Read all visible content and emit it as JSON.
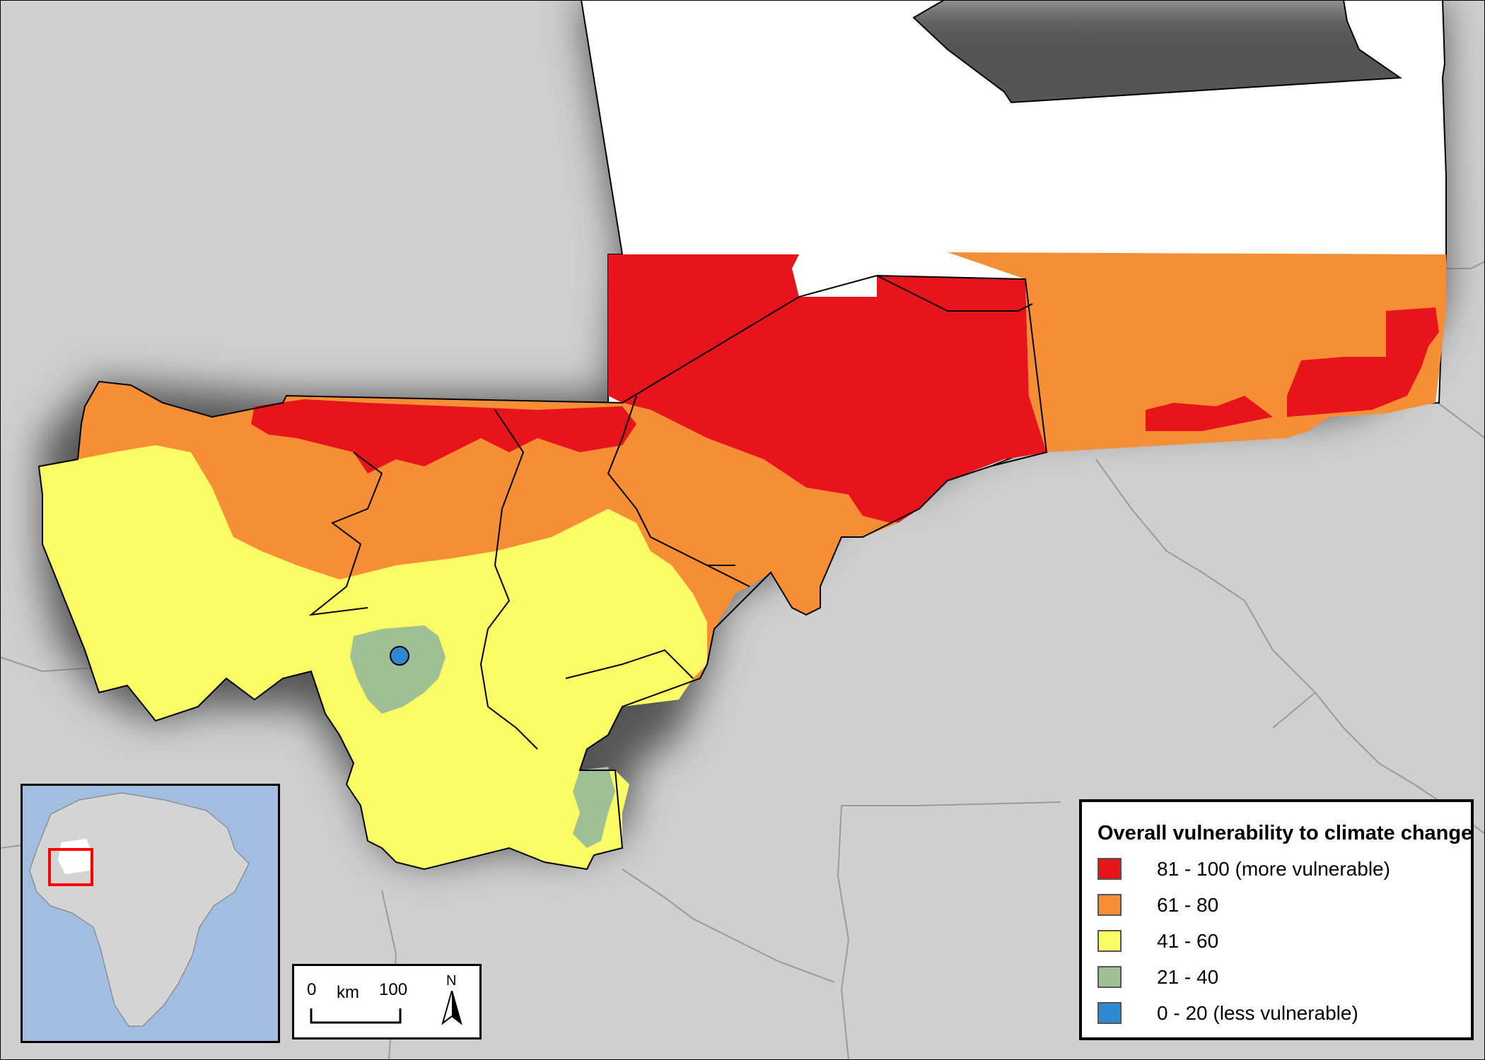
{
  "legend": {
    "title": "Overall vulnerability to climate change",
    "items": [
      {
        "label": "81 - 100 (more vulnerable)",
        "color": "#e8141b"
      },
      {
        "label": "61 - 80",
        "color": "#f68e35"
      },
      {
        "label": "41 - 60",
        "color": "#fbfb65"
      },
      {
        "label": "21 - 40",
        "color": "#9fbf94"
      },
      {
        "label": "0 - 20 (less vulnerable)",
        "color": "#2d8ad1"
      }
    ]
  },
  "scalebar": {
    "start": "0",
    "unit": "km",
    "end": "100",
    "north": "N"
  },
  "colors": {
    "background": "#cfcfcf",
    "no_data": "#ffffff",
    "ocean_inset": "#a3bde0",
    "land_inset": "#d4d4d4",
    "inset_highlight": "#ff0000"
  },
  "icons": {
    "north_arrow": "north-arrow-icon"
  }
}
